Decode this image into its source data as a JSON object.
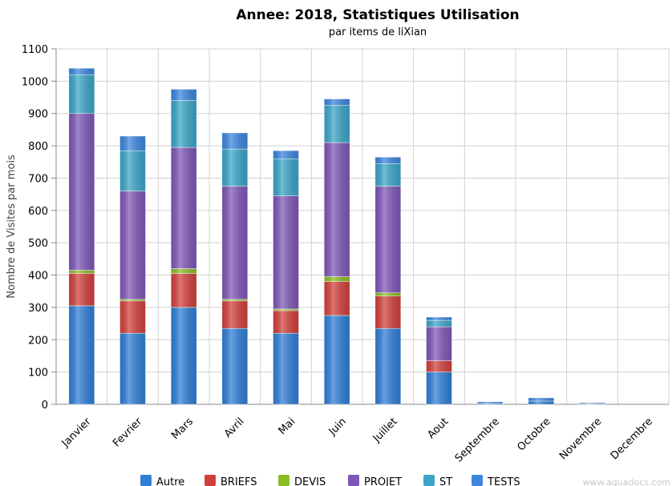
{
  "chart_data": {
    "type": "bar",
    "stacked": true,
    "title": "Annee: 2018, Statistiques Utilisation",
    "subtitle": "par items de liXian",
    "ylabel": "Nombre de Visites par mois",
    "xlabel": "",
    "ylim": [
      0,
      1100
    ],
    "yticks": [
      0,
      100,
      200,
      300,
      400,
      500,
      600,
      700,
      800,
      900,
      1000,
      1100
    ],
    "grid": true,
    "legend_position": "bottom",
    "categories": [
      "Janvier",
      "Fevrier",
      "Mars",
      "Avril",
      "Mai",
      "Juin",
      "Juillet",
      "Aout",
      "Septembre",
      "Octobre",
      "Novembre",
      "Decembre"
    ],
    "series": [
      {
        "name": "Autre",
        "color": "#2f7ed8",
        "values": [
          305,
          220,
          300,
          235,
          220,
          275,
          235,
          100,
          3,
          10,
          2,
          0
        ]
      },
      {
        "name": "BRIEFS",
        "color": "#d2403c",
        "values": [
          100,
          100,
          105,
          85,
          70,
          105,
          100,
          35,
          0,
          0,
          0,
          0
        ]
      },
      {
        "name": "DEVIS",
        "color": "#8bbc21",
        "values": [
          10,
          5,
          15,
          5,
          5,
          15,
          10,
          0,
          0,
          0,
          0,
          0
        ]
      },
      {
        "name": "PROJET",
        "color": "#7f57b8",
        "values": [
          485,
          335,
          375,
          350,
          350,
          415,
          330,
          105,
          0,
          0,
          0,
          0
        ]
      },
      {
        "name": "ST",
        "color": "#3aa5c8",
        "values": [
          120,
          125,
          145,
          115,
          115,
          115,
          70,
          20,
          0,
          0,
          0,
          0
        ]
      },
      {
        "name": "TESTS",
        "color": "#3c86e0",
        "values": [
          20,
          45,
          35,
          50,
          25,
          20,
          20,
          10,
          5,
          10,
          3,
          0
        ]
      }
    ]
  },
  "watermark": "www.aquadocs.com"
}
